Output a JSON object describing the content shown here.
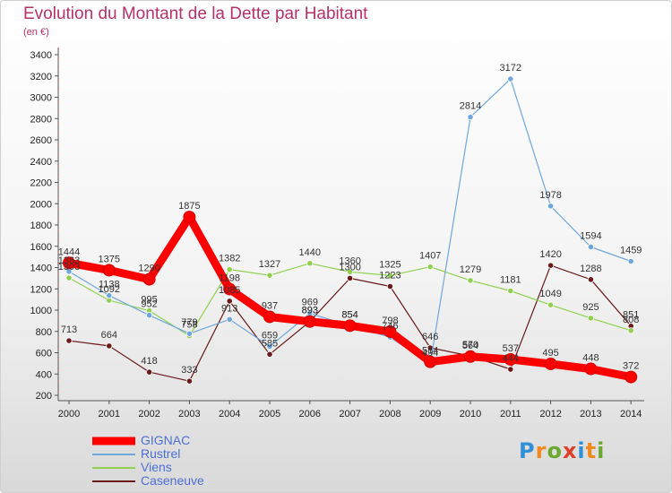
{
  "title": "Evolution du Montant de la Dette par Habitant",
  "subtitle": "(en €)",
  "logo_text": "Proxiti",
  "chart_data": {
    "type": "line",
    "x": [
      "2000",
      "2001",
      "2002",
      "2003",
      "2004",
      "2005",
      "2006",
      "2007",
      "2008",
      "2009",
      "2010",
      "2011",
      "2012",
      "2013",
      "2014"
    ],
    "ylim": [
      200,
      3400
    ],
    "yticks": [
      200,
      400,
      600,
      800,
      1000,
      1200,
      1400,
      1600,
      1800,
      2000,
      2200,
      2400,
      2600,
      2800,
      3000,
      3200,
      3400
    ],
    "grid": false,
    "legend": "bottom-left",
    "series": [
      {
        "name": "Caseneuve",
        "color": "#6b1a1a",
        "values": [
          713,
          664,
          418,
          333,
          1085,
          585,
          893,
          1300,
          1223,
          646,
          570,
          444,
          1420,
          1288,
          851
        ],
        "labels": [
          "713",
          "664",
          "418",
          "333",
          "1085",
          "585",
          "893",
          "1300",
          "1223",
          "646",
          "570",
          "444",
          "1420",
          "1288",
          "851"
        ]
      },
      {
        "name": "Viens",
        "color": "#8fd14f",
        "values": [
          1303,
          1092,
          995,
          758,
          1382,
          1327,
          1440,
          1360,
          1325,
          1407,
          1279,
          1181,
          1049,
          925,
          808
        ],
        "labels": [
          "1303",
          "1092",
          "995",
          "758",
          "1382",
          "1327",
          "1440",
          "1360",
          "1325",
          "1407",
          "1279",
          "1181",
          "1049",
          "925",
          "808"
        ]
      },
      {
        "name": "Rustrel",
        "color": "#6fa7dc",
        "values": [
          1363,
          1138,
          952,
          779,
          913,
          659,
          969,
          854,
          746,
          494,
          2814,
          3172,
          1978,
          1594,
          1459
        ],
        "labels": [
          "1363",
          "1138",
          "952",
          "779",
          "913",
          "659",
          "969",
          "854",
          "746",
          "494",
          "2814",
          "3172",
          "1978",
          "1594",
          "1459"
        ]
      },
      {
        "name": "GIGNAC",
        "color": "#ff0000",
        "bold": true,
        "values": [
          1444,
          1375,
          1290,
          1875,
          1198,
          937,
          893,
          854,
          798,
          514,
          564,
          537,
          495,
          448,
          372
        ],
        "labels": [
          "1444",
          "1375",
          "1290",
          "1875",
          "1198",
          "937",
          "893",
          "854",
          "798",
          "514",
          "564",
          "537",
          "495",
          "448",
          "372"
        ]
      }
    ],
    "legend_order": [
      "GIGNAC",
      "Rustrel",
      "Viens",
      "Caseneuve"
    ]
  }
}
